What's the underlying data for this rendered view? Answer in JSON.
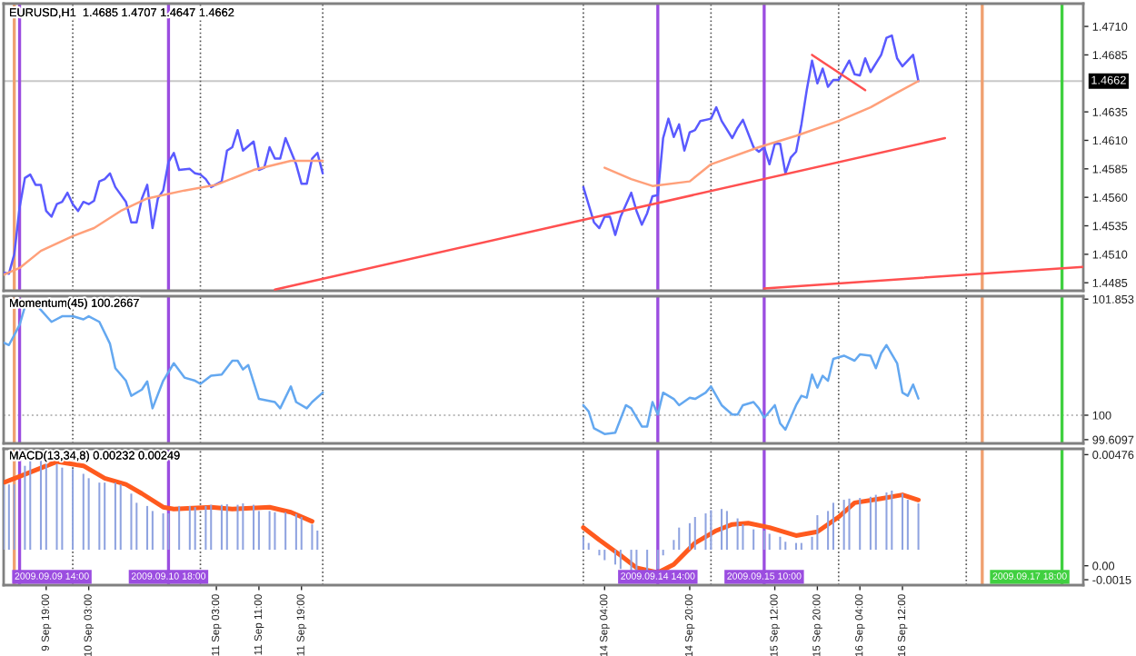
{
  "chart_data": [
    {
      "type": "line",
      "title": "EURUSD,H1  1.4685 1.4707 1.4647 1.4662",
      "xlim": [
        "2009-09-09T11:00",
        "2009-09-17T22:00"
      ],
      "ylim": [
        1.4478,
        1.473
      ],
      "tick_labels": "y",
      "yticks": [
        {
          "value": 1.4485,
          "label": "1.4485"
        },
        {
          "value": 1.451,
          "label": "1.4510"
        },
        {
          "value": 1.4535,
          "label": "1.4535"
        },
        {
          "value": 1.456,
          "label": "1.4560"
        },
        {
          "value": 1.4585,
          "label": "1.4585"
        },
        {
          "value": 1.461,
          "label": "1.4610"
        },
        {
          "value": 1.4635,
          "label": "1.4635"
        },
        {
          "value": 1.4685,
          "label": "1.4685"
        },
        {
          "value": 1.471,
          "label": "1.4710"
        }
      ],
      "series": [
        {
          "color": "#5a5aff",
          "x": [
            "2009-09-09T11:00",
            "2009-09-09T12:00",
            "2009-09-09T13:00",
            "2009-09-09T14:00",
            "2009-09-09T15:00",
            "2009-09-09T16:00",
            "2009-09-09T17:00",
            "2009-09-09T18:00",
            "2009-09-09T19:00",
            "2009-09-09T20:00",
            "2009-09-09T21:00",
            "2009-09-09T22:00",
            "2009-09-09T23:00",
            "2009-09-10T00:00",
            "2009-09-10T01:00",
            "2009-09-10T02:00",
            "2009-09-10T03:00",
            "2009-09-10T04:00",
            "2009-09-10T05:00",
            "2009-09-10T06:00",
            "2009-09-10T07:00",
            "2009-09-10T08:00",
            "2009-09-10T10:00",
            "2009-09-10T11:00",
            "2009-09-10T12:00",
            "2009-09-10T13:00",
            "2009-09-10T14:00",
            "2009-09-10T15:00",
            "2009-09-10T16:00",
            "2009-09-10T17:00",
            "2009-09-10T18:00",
            "2009-09-10T19:00",
            "2009-09-10T20:00",
            "2009-09-10T22:00",
            "2009-09-10T23:00",
            "2009-09-11T00:00",
            "2009-09-11T01:00",
            "2009-09-11T02:00",
            "2009-09-11T04:00",
            "2009-09-11T05:00",
            "2009-09-11T06:00",
            "2009-09-11T07:00",
            "2009-09-11T08:00",
            "2009-09-11T10:00",
            "2009-09-11T11:00",
            "2009-09-11T12:00",
            "2009-09-11T13:00",
            "2009-09-11T14:00",
            "2009-09-11T15:00",
            "2009-09-11T16:00",
            "2009-09-11T18:00",
            "2009-09-11T19:00",
            "2009-09-11T20:00",
            "2009-09-11T21:00",
            "2009-09-11T22:00",
            "2009-09-11T23:00",
            "2009-09-12T12:00",
            "2009-09-14T00:00",
            "2009-09-14T02:00",
            "2009-09-14T03:00",
            "2009-09-14T04:00",
            "2009-09-14T05:00",
            "2009-09-14T06:00",
            "2009-09-14T07:00",
            "2009-09-14T09:00",
            "2009-09-14T10:00",
            "2009-09-14T11:00",
            "2009-09-14T12:00",
            "2009-09-14T13:00",
            "2009-09-14T14:00",
            "2009-09-14T15:00",
            "2009-09-14T16:00",
            "2009-09-14T17:00",
            "2009-09-14T18:00",
            "2009-09-14T19:00",
            "2009-09-14T20:00",
            "2009-09-14T21:00",
            "2009-09-14T22:00",
            "2009-09-15T00:00",
            "2009-09-15T01:00",
            "2009-09-15T02:00",
            "2009-09-15T04:00",
            "2009-09-15T05:00",
            "2009-09-15T06:00",
            "2009-09-15T08:00",
            "2009-09-15T09:00",
            "2009-09-15T10:00",
            "2009-09-15T11:00",
            "2009-09-15T12:00",
            "2009-09-15T13:00",
            "2009-09-15T14:00",
            "2009-09-15T15:00",
            "2009-09-15T16:00",
            "2009-09-15T17:00",
            "2009-09-15T18:00",
            "2009-09-15T19:00",
            "2009-09-15T20:00",
            "2009-09-15T21:00",
            "2009-09-15T22:00",
            "2009-09-15T23:00",
            "2009-09-16T00:00",
            "2009-09-16T02:00",
            "2009-09-16T03:00",
            "2009-09-16T04:00",
            "2009-09-16T05:00",
            "2009-09-16T06:00",
            "2009-09-16T08:00",
            "2009-09-16T09:00",
            "2009-09-16T10:00",
            "2009-09-16T11:00",
            "2009-09-16T12:00",
            "2009-09-16T14:00",
            "2009-09-16T15:00"
          ],
          "values": [
            1.4494,
            1.4493,
            1.451,
            1.4551,
            1.4577,
            1.458,
            1.4571,
            1.4571,
            1.4548,
            1.4543,
            1.4554,
            1.4556,
            1.4564,
            1.4554,
            1.4548,
            1.4556,
            1.4554,
            1.4557,
            1.4574,
            1.4576,
            1.4581,
            1.4569,
            1.4556,
            1.4538,
            1.4538,
            1.4559,
            1.4571,
            1.4533,
            1.4559,
            1.4566,
            1.4591,
            1.4599,
            1.4584,
            1.4585,
            1.4581,
            1.458,
            1.4576,
            1.4569,
            1.4574,
            1.4601,
            1.4604,
            1.4619,
            1.4601,
            1.4609,
            1.4584,
            1.4586,
            1.4604,
            1.4594,
            1.4594,
            1.4612,
            1.4589,
            1.4572,
            1.4572,
            1.4594,
            1.4599,
            1.4581,
            null,
            1.4569,
            1.4538,
            1.4533,
            1.4543,
            1.4543,
            1.4527,
            1.4543,
            1.4564,
            1.4548,
            1.4536,
            1.4546,
            1.4561,
            1.4562,
            1.4612,
            1.4629,
            1.4613,
            1.4624,
            1.4601,
            1.4617,
            1.4619,
            1.4627,
            1.4629,
            1.4639,
            1.4627,
            1.4612,
            1.4621,
            1.4628,
            1.4604,
            1.46,
            1.4604,
            1.4589,
            1.4607,
            1.4607,
            1.4581,
            1.4595,
            1.46,
            1.4624,
            1.4654,
            1.468,
            1.466,
            1.4673,
            1.4657,
            1.4663,
            1.4663,
            1.468,
            1.4668,
            1.4667,
            1.4682,
            1.467,
            1.4685,
            1.47,
            1.4702,
            1.4682,
            1.4675,
            1.4685,
            1.4662
          ]
        },
        {
          "color": "#ffa07a",
          "x": [
            "2009-09-09T11:00",
            "2009-09-09T14:00",
            "2009-09-09T18:00",
            "2009-09-10T00:00",
            "2009-09-10T04:00",
            "2009-09-10T09:00",
            "2009-09-10T14:00",
            "2009-09-10T21:00",
            "2009-09-11T03:00",
            "2009-09-11T10:00",
            "2009-09-11T17:00",
            "2009-09-11T23:00",
            "2009-09-12T12:00",
            "2009-09-14T04:00",
            "2009-09-14T09:00",
            "2009-09-14T13:00",
            "2009-09-14T20:00",
            "2009-09-15T00:00",
            "2009-09-15T09:00",
            "2009-09-15T16:00",
            "2009-09-16T00:00",
            "2009-09-16T06:00",
            "2009-09-16T11:00",
            "2009-09-16T15:00"
          ],
          "values": [
            1.4492,
            1.4498,
            1.4513,
            1.4526,
            1.4533,
            1.4548,
            1.4559,
            1.4566,
            1.4571,
            1.4584,
            1.4592,
            1.4592,
            null,
            1.4586,
            1.4576,
            1.457,
            1.4574,
            1.4589,
            1.4604,
            1.4614,
            1.4627,
            1.4639,
            1.4652,
            1.4662
          ]
        },
        {
          "color": "#ff5050",
          "x": [
            "2009-09-11T14:00",
            "2009-09-16T20:00"
          ],
          "values": [
            1.4479,
            1.4612
          ]
        },
        {
          "color": "#ff5050",
          "x": [
            "2009-09-15T10:00",
            "2009-09-17T22:00"
          ],
          "values": [
            1.448,
            1.4499
          ]
        },
        {
          "color": "#ff5050",
          "x": [
            "2009-09-15T19:00",
            "2009-09-16T05:00"
          ],
          "values": [
            1.4685,
            1.4654
          ]
        }
      ],
      "ref_lines": [
        {
          "axis": "y",
          "value": 1.4662,
          "label": "1.4662",
          "color": "#c8c8c8",
          "line_style": "solid"
        },
        {
          "axis": "x",
          "value": "2009-09-09T14:00",
          "color": "#9b4de0",
          "line_style": "solid"
        },
        {
          "axis": "x",
          "value": "2009-09-10T18:00",
          "color": "#9b4de0",
          "line_style": "solid"
        },
        {
          "axis": "x",
          "value": "2009-09-14T14:00",
          "color": "#9b4de0",
          "line_style": "solid"
        },
        {
          "axis": "x",
          "value": "2009-09-15T10:00",
          "color": "#9b4de0",
          "line_style": "solid"
        },
        {
          "axis": "x",
          "value": "2009-09-17T18:00",
          "color": "#40d040",
          "line_style": "solid"
        },
        {
          "axis": "x",
          "value": "2009-09-09T13:00",
          "color": "#f0a070",
          "line_style": "solid"
        },
        {
          "axis": "x",
          "value": "2009-09-17T03:00",
          "color": "#f0a070",
          "line_style": "solid"
        },
        {
          "axis": "x",
          "value": "2009-09-10T00:00",
          "color": "#555555",
          "line_style": "dotted"
        },
        {
          "axis": "x",
          "value": "2009-09-11T00:00",
          "color": "#555555",
          "line_style": "dotted"
        },
        {
          "axis": "x",
          "value": "2009-09-11T23:00",
          "color": "#555555",
          "line_style": "dotted"
        },
        {
          "axis": "x",
          "value": "2009-09-14T00:00",
          "color": "#555555",
          "line_style": "dotted"
        },
        {
          "axis": "x",
          "value": "2009-09-15T00:00",
          "color": "#555555",
          "line_style": "dotted"
        },
        {
          "axis": "x",
          "value": "2009-09-16T00:00",
          "color": "#555555",
          "line_style": "dotted"
        },
        {
          "axis": "x",
          "value": "2009-09-17T00:00",
          "color": "#555555",
          "line_style": "dotted"
        }
      ]
    },
    {
      "type": "line",
      "title": "Momentum(45) 100.2667",
      "xlim": [
        "2009-09-09T11:00",
        "2009-09-17T22:00"
      ],
      "ylim": [
        99.55,
        101.9
      ],
      "tick_labels": "y",
      "yticks": [
        99.6097,
        100,
        101.853
      ],
      "series": [
        {
          "color": "#64a8f0",
          "x": [
            "2009-09-09T11:00",
            "2009-09-09T12:00",
            "2009-09-09T14:00",
            "2009-09-09T15:00",
            "2009-09-09T17:00",
            "2009-09-09T18:00",
            "2009-09-09T20:00",
            "2009-09-09T22:00",
            "2009-09-10T00:00",
            "2009-09-10T02:00",
            "2009-09-10T03:00",
            "2009-09-10T05:00",
            "2009-09-10T07:00",
            "2009-09-10T08:00",
            "2009-09-10T10:00",
            "2009-09-10T11:00",
            "2009-09-10T13:00",
            "2009-09-10T14:00",
            "2009-09-10T15:00",
            "2009-09-10T17:00",
            "2009-09-10T19:00",
            "2009-09-10T21:00",
            "2009-09-10T23:00",
            "2009-09-11T00:00",
            "2009-09-11T02:00",
            "2009-09-11T04:00",
            "2009-09-11T06:00",
            "2009-09-11T07:00",
            "2009-09-11T08:00",
            "2009-09-11T09:00",
            "2009-09-11T11:00",
            "2009-09-11T14:00",
            "2009-09-11T15:00",
            "2009-09-11T17:00",
            "2009-09-11T18:00",
            "2009-09-11T20:00",
            "2009-09-11T21:00",
            "2009-09-11T23:00",
            "2009-09-12T12:00",
            "2009-09-14T00:00",
            "2009-09-14T01:00",
            "2009-09-14T02:00",
            "2009-09-14T04:00",
            "2009-09-14T06:00",
            "2009-09-14T08:00",
            "2009-09-14T09:00",
            "2009-09-14T11:00",
            "2009-09-14T12:00",
            "2009-09-14T13:00",
            "2009-09-14T14:00",
            "2009-09-14T15:00",
            "2009-09-14T17:00",
            "2009-09-14T18:00",
            "2009-09-14T20:00",
            "2009-09-14T21:00",
            "2009-09-14T23:00",
            "2009-09-15T00:00",
            "2009-09-15T02:00",
            "2009-09-15T04:00",
            "2009-09-15T05:00",
            "2009-09-15T06:00",
            "2009-09-15T08:00",
            "2009-09-15T09:00",
            "2009-09-15T10:00",
            "2009-09-15T12:00",
            "2009-09-15T13:00",
            "2009-09-15T14:00",
            "2009-09-15T16:00",
            "2009-09-15T17:00",
            "2009-09-15T18:00",
            "2009-09-15T19:00",
            "2009-09-15T20:00",
            "2009-09-15T21:00",
            "2009-09-15T22:00",
            "2009-09-15T23:00",
            "2009-09-16T01:00",
            "2009-09-16T03:00",
            "2009-09-16T04:00",
            "2009-09-16T06:00",
            "2009-09-16T07:00",
            "2009-09-16T08:00",
            "2009-09-16T09:00",
            "2009-09-16T11:00",
            "2009-09-16T12:00",
            "2009-09-16T13:00",
            "2009-09-16T14:00",
            "2009-09-16T15:00"
          ],
          "values": [
            101.16,
            101.12,
            101.44,
            101.73,
            101.78,
            101.68,
            101.49,
            101.58,
            101.58,
            101.53,
            101.58,
            101.49,
            101.14,
            100.75,
            100.55,
            100.31,
            100.41,
            100.54,
            100.11,
            100.55,
            100.83,
            100.6,
            100.55,
            100.5,
            100.63,
            100.65,
            100.87,
            100.87,
            100.73,
            100.8,
            100.26,
            100.21,
            100.11,
            100.46,
            100.21,
            100.11,
            100.21,
            100.36,
            null,
            100.16,
            100.06,
            99.79,
            99.7,
            99.72,
            100.16,
            100.11,
            99.82,
            99.82,
            100.21,
            100.01,
            100.36,
            100.26,
            100.16,
            100.28,
            100.26,
            100.36,
            100.46,
            100.16,
            100.01,
            100.01,
            100.16,
            100.21,
            100.11,
            99.96,
            100.16,
            99.87,
            99.77,
            100.16,
            100.31,
            100.28,
            100.65,
            100.44,
            100.63,
            100.55,
            100.9,
            100.95,
            100.87,
            100.97,
            100.95,
            100.75,
            100.99,
            101.12,
            100.83,
            100.36,
            100.31,
            100.49,
            100.2667
          ]
        }
      ],
      "ref_lines": [
        {
          "axis": "y",
          "value": 100,
          "color": "#bbbbbb",
          "line_style": "dotted"
        },
        {
          "axis": "x",
          "value": "2009-09-09T14:00",
          "color": "#9b4de0",
          "line_style": "solid"
        },
        {
          "axis": "x",
          "value": "2009-09-10T18:00",
          "color": "#9b4de0",
          "line_style": "solid"
        },
        {
          "axis": "x",
          "value": "2009-09-14T14:00",
          "color": "#9b4de0",
          "line_style": "solid"
        },
        {
          "axis": "x",
          "value": "2009-09-15T10:00",
          "color": "#9b4de0",
          "line_style": "solid"
        },
        {
          "axis": "x",
          "value": "2009-09-17T18:00",
          "color": "#40d040",
          "line_style": "solid"
        },
        {
          "axis": "x",
          "value": "2009-09-09T13:00",
          "color": "#f0a070",
          "line_style": "solid"
        },
        {
          "axis": "x",
          "value": "2009-09-17T03:00",
          "color": "#f0a070",
          "line_style": "solid"
        },
        {
          "axis": "x",
          "value": "2009-09-10T00:00",
          "color": "#555555",
          "line_style": "dotted"
        },
        {
          "axis": "x",
          "value": "2009-09-11T00:00",
          "color": "#555555",
          "line_style": "dotted"
        },
        {
          "axis": "x",
          "value": "2009-09-11T23:00",
          "color": "#555555",
          "line_style": "dotted"
        },
        {
          "axis": "x",
          "value": "2009-09-14T00:00",
          "color": "#555555",
          "line_style": "dotted"
        },
        {
          "axis": "x",
          "value": "2009-09-15T00:00",
          "color": "#555555",
          "line_style": "dotted"
        },
        {
          "axis": "x",
          "value": "2009-09-16T00:00",
          "color": "#555555",
          "line_style": "dotted"
        },
        {
          "axis": "x",
          "value": "2009-09-17T00:00",
          "color": "#555555",
          "line_style": "dotted"
        }
      ]
    },
    {
      "type": "line",
      "title": "MACD(13,34,8) 0.00232 0.00249",
      "xlim": [
        "2009-09-09T11:00",
        "2009-09-17T22:00"
      ],
      "ylim": [
        -0.00177,
        0.00505
      ],
      "yticks": [
        {
          "value": -0.0015,
          "label": "-0.0015"
        },
        {
          "value": -0.0008,
          "label": "0.00"
        },
        {
          "value": 0.00476,
          "label": "0.00476"
        }
      ],
      "xticks": [
        {
          "value": "2009-09-09T19:00",
          "label": "9 Sep 19:00"
        },
        {
          "value": "2009-09-10T03:00",
          "label": "10 Sep 03:00"
        },
        {
          "value": "2009-09-11T03:00",
          "label": "11 Sep 03:00"
        },
        {
          "value": "2009-09-11T11:00",
          "label": "11 Sep 11:00"
        },
        {
          "value": "2009-09-11T19:00",
          "label": "11 Sep 19:00"
        },
        {
          "value": "2009-09-14T04:00",
          "label": "14 Sep 04:00"
        },
        {
          "value": "2009-09-14T20:00",
          "label": "14 Sep 20:00"
        },
        {
          "value": "2009-09-15T12:00",
          "label": "15 Sep 12:00"
        },
        {
          "value": "2009-09-15T20:00",
          "label": "15 Sep 20:00"
        },
        {
          "value": "2009-09-16T04:00",
          "label": "16 Sep 04:00"
        },
        {
          "value": "2009-09-16T12:00",
          "label": "16 Sep 12:00"
        }
      ],
      "series": [
        {
          "type": "bar",
          "color": "#8fa3e0",
          "x": [
            "2009-09-09T11:00",
            "2009-09-09T12:00",
            "2009-09-09T13:00",
            "2009-09-09T15:00",
            "2009-09-09T16:00",
            "2009-09-09T18:00",
            "2009-09-09T19:00",
            "2009-09-09T21:00",
            "2009-09-09T22:00",
            "2009-09-10T00:00",
            "2009-09-10T02:00",
            "2009-09-10T03:00",
            "2009-09-10T05:00",
            "2009-09-10T06:00",
            "2009-09-10T08:00",
            "2009-09-10T09:00",
            "2009-09-10T11:00",
            "2009-09-10T12:00",
            "2009-09-10T14:00",
            "2009-09-10T15:00",
            "2009-09-10T17:00",
            "2009-09-10T18:00",
            "2009-09-10T20:00",
            "2009-09-10T22:00",
            "2009-09-10T23:00",
            "2009-09-11T01:00",
            "2009-09-11T02:00",
            "2009-09-11T04:00",
            "2009-09-11T05:00",
            "2009-09-11T07:00",
            "2009-09-11T08:00",
            "2009-09-11T10:00",
            "2009-09-11T11:00",
            "2009-09-11T13:00",
            "2009-09-11T14:00",
            "2009-09-11T16:00",
            "2009-09-11T18:00",
            "2009-09-11T19:00",
            "2009-09-11T21:00",
            "2009-09-11T22:00",
            "2009-09-14T00:00",
            "2009-09-14T01:00",
            "2009-09-14T03:00",
            "2009-09-14T04:00",
            "2009-09-14T06:00",
            "2009-09-14T07:00",
            "2009-09-14T09:00",
            "2009-09-14T10:00",
            "2009-09-14T12:00",
            "2009-09-14T14:00",
            "2009-09-14T15:00",
            "2009-09-14T17:00",
            "2009-09-14T18:00",
            "2009-09-14T20:00",
            "2009-09-14T21:00",
            "2009-09-14T23:00",
            "2009-09-15T00:00",
            "2009-09-15T02:00",
            "2009-09-15T03:00",
            "2009-09-15T05:00",
            "2009-09-15T06:00",
            "2009-09-15T08:00",
            "2009-09-15T10:00",
            "2009-09-15T11:00",
            "2009-09-15T13:00",
            "2009-09-15T14:00",
            "2009-09-15T16:00",
            "2009-09-15T17:00",
            "2009-09-15T19:00",
            "2009-09-15T20:00",
            "2009-09-15T22:00",
            "2009-09-15T23:00",
            "2009-09-16T01:00",
            "2009-09-16T02:00",
            "2009-09-16T04:00",
            "2009-09-16T06:00",
            "2009-09-16T07:00",
            "2009-09-16T09:00",
            "2009-09-16T10:00",
            "2009-09-16T12:00",
            "2009-09-16T13:00",
            "2009-09-16T15:00"
          ],
          "values": [
            0.00327,
            0.00327,
            0.00327,
            0.0042,
            0.00451,
            0.00466,
            0.00451,
            0.00429,
            0.00411,
            0.00404,
            0.0038,
            0.00358,
            0.00336,
            0.00336,
            0.00336,
            0.00327,
            0.00281,
            0.00235,
            0.00219,
            0.00194,
            0.00182,
            0.00182,
            0.00219,
            0.00219,
            0.00213,
            0.00219,
            0.00225,
            0.00225,
            0.00228,
            0.00225,
            0.00232,
            0.00225,
            0.00194,
            0.00194,
            0.00188,
            0.00188,
            0.00179,
            0.00164,
            0.00127,
            0.00096,
            0.00065,
            0.00034,
            -0.00028,
            -0.00052,
            -0.00074,
            -0.00096,
            -0.00108,
            -0.00114,
            -0.00114,
            -0.00096,
            -0.00028,
            0.00049,
            0.00111,
            0.00133,
            0.00164,
            0.00182,
            0.00198,
            0.00204,
            0.00194,
            0.00157,
            0.00127,
            0.00102,
            0.00096,
            0.0008,
            0.00065,
            0.0004,
            0.00034,
            0.00034,
            0.00065,
            0.00173,
            0.00194,
            0.00235,
            0.0025,
            0.00256,
            0.00259,
            0.00265,
            0.00275,
            0.00287,
            0.00296,
            0.00281,
            0.0025,
            0.00232
          ]
        },
        {
          "color": "#ff5a1e",
          "x": [
            "2009-09-09T11:00",
            "2009-09-09T14:00",
            "2009-09-09T21:00",
            "2009-09-10T02:00",
            "2009-09-10T06:00",
            "2009-09-10T10:00",
            "2009-09-10T13:00",
            "2009-09-10T17:00",
            "2009-09-10T19:00",
            "2009-09-11T02:00",
            "2009-09-11T06:00",
            "2009-09-11T13:00",
            "2009-09-11T17:00",
            "2009-09-11T21:00",
            "2009-09-12T12:00",
            "2009-09-14T00:00",
            "2009-09-14T03:00",
            "2009-09-14T07:00",
            "2009-09-14T10:00",
            "2009-09-14T14:00",
            "2009-09-14T17:00",
            "2009-09-14T21:00",
            "2009-09-15T01:00",
            "2009-09-15T04:00",
            "2009-09-15T07:00",
            "2009-09-15T11:00",
            "2009-09-15T16:00",
            "2009-09-15T20:00",
            "2009-09-16T00:00",
            "2009-09-16T03:00",
            "2009-09-16T08:00",
            "2009-09-16T12:00",
            "2009-09-16T15:00"
          ],
          "values": [
            0.00336,
            0.00367,
            0.00441,
            0.0042,
            0.00358,
            0.00327,
            0.00281,
            0.00213,
            0.00204,
            0.00213,
            0.00204,
            0.00213,
            0.00188,
            0.00142,
            null,
            0.00111,
            0.00049,
            -0.00028,
            -0.0009,
            -0.00114,
            -0.00074,
            0.00034,
            0.00096,
            0.00127,
            0.00133,
            0.00111,
            0.00071,
            0.0009,
            0.00164,
            0.00235,
            0.00256,
            0.00275,
            0.00249
          ]
        }
      ],
      "ref_lines": [
        {
          "axis": "x",
          "value": "2009-09-09T14:00",
          "label": "2009.09.09 14:00",
          "color": "#9b4de0",
          "line_style": "solid"
        },
        {
          "axis": "x",
          "value": "2009-09-10T18:00",
          "label": "2009.09.10 18:00",
          "color": "#9b4de0",
          "line_style": "solid"
        },
        {
          "axis": "x",
          "value": "2009-09-14T14:00",
          "label": "2009.09.14 14:00",
          "color": "#9b4de0",
          "line_style": "solid"
        },
        {
          "axis": "x",
          "value": "2009-09-15T10:00",
          "label": "2009.09.15 10:00",
          "color": "#9b4de0",
          "line_style": "solid"
        },
        {
          "axis": "x",
          "value": "2009-09-17T18:00",
          "label": "2009.09.17 18:00",
          "color": "#40d040",
          "line_style": "solid"
        },
        {
          "axis": "x",
          "value": "2009-09-09T13:00",
          "color": "#f0a070",
          "line_style": "solid"
        },
        {
          "axis": "x",
          "value": "2009-09-17T03:00",
          "color": "#f0a070",
          "line_style": "solid"
        },
        {
          "axis": "x",
          "value": "2009-09-10T00:00",
          "color": "#555555",
          "line_style": "dotted"
        },
        {
          "axis": "x",
          "value": "2009-09-11T00:00",
          "color": "#555555",
          "line_style": "dotted"
        },
        {
          "axis": "x",
          "value": "2009-09-11T23:00",
          "color": "#555555",
          "line_style": "dotted"
        },
        {
          "axis": "x",
          "value": "2009-09-14T00:00",
          "color": "#555555",
          "line_style": "dotted"
        },
        {
          "axis": "x",
          "value": "2009-09-15T00:00",
          "color": "#555555",
          "line_style": "dotted"
        },
        {
          "axis": "x",
          "value": "2009-09-16T00:00",
          "color": "#555555",
          "line_style": "dotted"
        },
        {
          "axis": "x",
          "value": "2009-09-17T00:00",
          "color": "#555555",
          "line_style": "dotted"
        }
      ]
    }
  ]
}
